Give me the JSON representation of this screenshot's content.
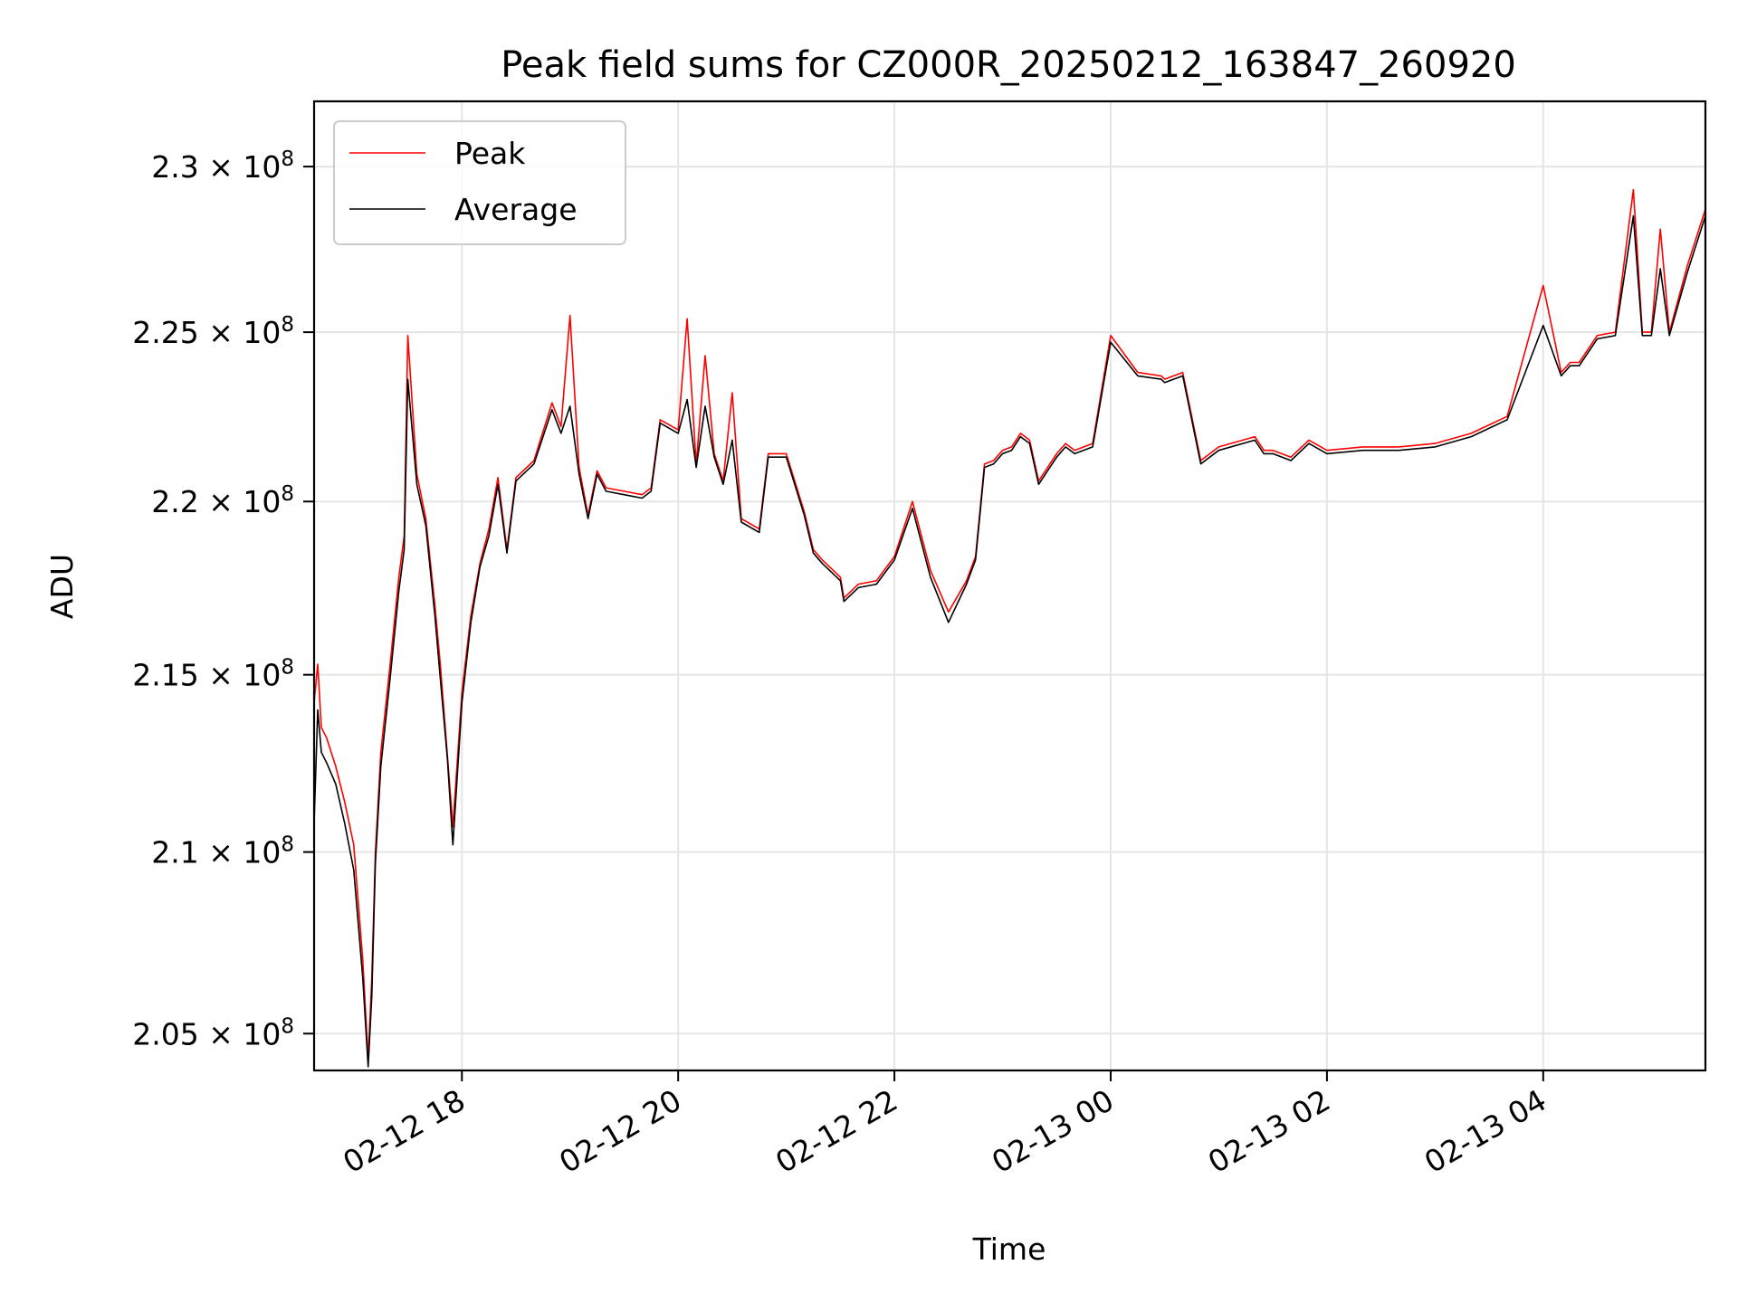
{
  "chart_data": {
    "type": "line",
    "title": "Peak field sums for CZ000R_20250212_163847_260920",
    "xlabel": "Time",
    "ylabel": "ADU",
    "x_axis_type": "datetime",
    "xlim": [
      "2025-02-12 16:38",
      "2025-02-13 05:30"
    ],
    "ylim": [
      204000000,
      232000000
    ],
    "y_scale": "log",
    "grid": true,
    "legend_position": "top-left",
    "x_ticks": [
      "02-12 18",
      "02-12 20",
      "02-12 22",
      "02-13 00",
      "02-13 02",
      "02-13 04"
    ],
    "x_tick_times": [
      "2025-02-12 18:00",
      "2025-02-12 20:00",
      "2025-02-12 22:00",
      "2025-02-13 00:00",
      "2025-02-13 02:00",
      "2025-02-13 04:00"
    ],
    "y_ticks": [
      {
        "value": 205000000,
        "mantissa": "2.05",
        "exp": "8"
      },
      {
        "value": 210000000,
        "mantissa": "2.1",
        "exp": "8"
      },
      {
        "value": 215000000,
        "mantissa": "2.15",
        "exp": "8"
      },
      {
        "value": 220000000,
        "mantissa": "2.2",
        "exp": "8"
      },
      {
        "value": 225000000,
        "mantissa": "2.25",
        "exp": "8"
      },
      {
        "value": 230000000,
        "mantissa": "2.3",
        "exp": "8"
      }
    ],
    "times_symbol": "×",
    "colors": {
      "peak": "#ff0000",
      "average": "#000000",
      "grid": "#e5e5e5"
    },
    "series": [
      {
        "name": "Peak",
        "color": "#ff0000",
        "x": [
          "2025-02-12 16:38",
          "2025-02-12 16:40",
          "2025-02-12 16:42",
          "2025-02-12 16:45",
          "2025-02-12 16:50",
          "2025-02-12 16:55",
          "2025-02-12 17:00",
          "2025-02-12 17:05",
          "2025-02-12 17:08",
          "2025-02-12 17:10",
          "2025-02-12 17:12",
          "2025-02-12 17:15",
          "2025-02-12 17:20",
          "2025-02-12 17:25",
          "2025-02-12 17:28",
          "2025-02-12 17:30",
          "2025-02-12 17:35",
          "2025-02-12 17:40",
          "2025-02-12 17:45",
          "2025-02-12 17:48",
          "2025-02-12 17:52",
          "2025-02-12 17:55",
          "2025-02-12 18:00",
          "2025-02-12 18:05",
          "2025-02-12 18:10",
          "2025-02-12 18:15",
          "2025-02-12 18:20",
          "2025-02-12 18:25",
          "2025-02-12 18:30",
          "2025-02-12 18:40",
          "2025-02-12 18:50",
          "2025-02-12 18:55",
          "2025-02-12 19:00",
          "2025-02-12 19:05",
          "2025-02-12 19:10",
          "2025-02-12 19:15",
          "2025-02-12 19:20",
          "2025-02-12 19:30",
          "2025-02-12 19:40",
          "2025-02-12 19:45",
          "2025-02-12 19:50",
          "2025-02-12 20:00",
          "2025-02-12 20:05",
          "2025-02-12 20:10",
          "2025-02-12 20:15",
          "2025-02-12 20:20",
          "2025-02-12 20:25",
          "2025-02-12 20:30",
          "2025-02-12 20:35",
          "2025-02-12 20:45",
          "2025-02-12 20:50",
          "2025-02-12 21:00",
          "2025-02-12 21:10",
          "2025-02-12 21:15",
          "2025-02-12 21:20",
          "2025-02-12 21:30",
          "2025-02-12 21:32",
          "2025-02-12 21:40",
          "2025-02-12 21:50",
          "2025-02-12 22:00",
          "2025-02-12 22:10",
          "2025-02-12 22:20",
          "2025-02-12 22:30",
          "2025-02-12 22:40",
          "2025-02-12 22:45",
          "2025-02-12 22:50",
          "2025-02-12 22:55",
          "2025-02-12 23:00",
          "2025-02-12 23:05",
          "2025-02-12 23:10",
          "2025-02-12 23:15",
          "2025-02-12 23:20",
          "2025-02-12 23:30",
          "2025-02-12 23:35",
          "2025-02-12 23:40",
          "2025-02-12 23:50",
          "2025-02-13 00:00",
          "2025-02-13 00:15",
          "2025-02-13 00:28",
          "2025-02-13 00:30",
          "2025-02-13 00:40",
          "2025-02-13 00:50",
          "2025-02-13 01:00",
          "2025-02-13 01:20",
          "2025-02-13 01:25",
          "2025-02-13 01:30",
          "2025-02-13 01:40",
          "2025-02-13 01:50",
          "2025-02-13 02:00",
          "2025-02-13 02:20",
          "2025-02-13 02:40",
          "2025-02-13 03:00",
          "2025-02-13 03:20",
          "2025-02-13 03:40",
          "2025-02-13 04:00",
          "2025-02-13 04:10",
          "2025-02-13 04:15",
          "2025-02-13 04:20",
          "2025-02-13 04:25",
          "2025-02-13 04:30",
          "2025-02-13 04:40",
          "2025-02-13 04:50",
          "2025-02-13 04:55",
          "2025-02-13 05:00",
          "2025-02-13 05:05",
          "2025-02-13 05:10",
          "2025-02-13 05:20",
          "2025-02-13 05:30"
        ],
        "y": [
          214200000,
          215300000,
          213500000,
          213200000,
          212400000,
          211400000,
          210200000,
          207000000,
          204300000,
          206500000,
          210000000,
          212800000,
          215200000,
          217800000,
          219000000,
          224900000,
          220800000,
          219500000,
          217000000,
          215300000,
          212700000,
          210700000,
          214500000,
          216700000,
          218200000,
          219200000,
          220700000,
          218600000,
          220700000,
          221200000,
          222900000,
          222200000,
          225500000,
          221000000,
          219600000,
          220900000,
          220400000,
          220300000,
          220200000,
          220400000,
          222400000,
          222100000,
          225400000,
          221100000,
          224300000,
          221400000,
          220600000,
          223200000,
          219500000,
          219200000,
          221400000,
          221400000,
          219700000,
          218600000,
          218300000,
          217800000,
          217200000,
          217600000,
          217700000,
          218400000,
          220000000,
          218000000,
          216800000,
          217700000,
          218400000,
          221100000,
          221200000,
          221500000,
          221600000,
          222000000,
          221800000,
          220600000,
          221400000,
          221700000,
          221500000,
          221700000,
          224900000,
          223800000,
          223700000,
          223600000,
          223800000,
          221200000,
          221600000,
          221900000,
          221500000,
          221500000,
          221300000,
          221800000,
          221500000,
          221600000,
          221600000,
          221700000,
          222000000,
          222500000,
          226400000,
          223800000,
          224100000,
          224100000,
          224500000,
          224900000,
          225000000,
          229300000,
          225000000,
          225000000,
          228100000,
          225000000,
          227000000,
          228700000
        ]
      },
      {
        "name": "Average",
        "color": "#000000",
        "x": [
          "2025-02-12 16:38",
          "2025-02-12 16:40",
          "2025-02-12 16:42",
          "2025-02-12 16:45",
          "2025-02-12 16:50",
          "2025-02-12 16:55",
          "2025-02-12 17:00",
          "2025-02-12 17:05",
          "2025-02-12 17:08",
          "2025-02-12 17:10",
          "2025-02-12 17:12",
          "2025-02-12 17:15",
          "2025-02-12 17:20",
          "2025-02-12 17:25",
          "2025-02-12 17:28",
          "2025-02-12 17:30",
          "2025-02-12 17:35",
          "2025-02-12 17:40",
          "2025-02-12 17:45",
          "2025-02-12 17:48",
          "2025-02-12 17:52",
          "2025-02-12 17:55",
          "2025-02-12 18:00",
          "2025-02-12 18:05",
          "2025-02-12 18:10",
          "2025-02-12 18:15",
          "2025-02-12 18:20",
          "2025-02-12 18:25",
          "2025-02-12 18:30",
          "2025-02-12 18:40",
          "2025-02-12 18:50",
          "2025-02-12 18:55",
          "2025-02-12 19:00",
          "2025-02-12 19:05",
          "2025-02-12 19:10",
          "2025-02-12 19:15",
          "2025-02-12 19:20",
          "2025-02-12 19:30",
          "2025-02-12 19:40",
          "2025-02-12 19:45",
          "2025-02-12 19:50",
          "2025-02-12 20:00",
          "2025-02-12 20:05",
          "2025-02-12 20:10",
          "2025-02-12 20:15",
          "2025-02-12 20:20",
          "2025-02-12 20:25",
          "2025-02-12 20:30",
          "2025-02-12 20:35",
          "2025-02-12 20:45",
          "2025-02-12 20:50",
          "2025-02-12 21:00",
          "2025-02-12 21:10",
          "2025-02-12 21:15",
          "2025-02-12 21:20",
          "2025-02-12 21:30",
          "2025-02-12 21:32",
          "2025-02-12 21:40",
          "2025-02-12 21:50",
          "2025-02-12 22:00",
          "2025-02-12 22:10",
          "2025-02-12 22:20",
          "2025-02-12 22:30",
          "2025-02-12 22:40",
          "2025-02-12 22:45",
          "2025-02-12 22:50",
          "2025-02-12 22:55",
          "2025-02-12 23:00",
          "2025-02-12 23:05",
          "2025-02-12 23:10",
          "2025-02-12 23:15",
          "2025-02-12 23:20",
          "2025-02-12 23:30",
          "2025-02-12 23:35",
          "2025-02-12 23:40",
          "2025-02-12 23:50",
          "2025-02-13 00:00",
          "2025-02-13 00:15",
          "2025-02-13 00:28",
          "2025-02-13 00:30",
          "2025-02-13 00:40",
          "2025-02-13 00:50",
          "2025-02-13 01:00",
          "2025-02-13 01:20",
          "2025-02-13 01:25",
          "2025-02-13 01:30",
          "2025-02-13 01:40",
          "2025-02-13 01:50",
          "2025-02-13 02:00",
          "2025-02-13 02:20",
          "2025-02-13 02:40",
          "2025-02-13 03:00",
          "2025-02-13 03:20",
          "2025-02-13 03:40",
          "2025-02-13 04:00",
          "2025-02-13 04:10",
          "2025-02-13 04:15",
          "2025-02-13 04:20",
          "2025-02-13 04:25",
          "2025-02-13 04:30",
          "2025-02-13 04:40",
          "2025-02-13 04:50",
          "2025-02-13 04:55",
          "2025-02-13 05:00",
          "2025-02-13 05:05",
          "2025-02-13 05:10",
          "2025-02-13 05:20",
          "2025-02-13 05:30"
        ],
        "y": [
          210800000,
          214000000,
          212800000,
          212500000,
          211900000,
          210800000,
          209500000,
          206500000,
          204100000,
          206000000,
          209700000,
          212400000,
          214800000,
          217400000,
          218600000,
          223600000,
          220500000,
          219300000,
          216700000,
          214900000,
          212600000,
          210200000,
          214200000,
          216500000,
          218100000,
          219000000,
          220500000,
          218500000,
          220600000,
          221100000,
          222700000,
          222000000,
          222800000,
          220800000,
          219500000,
          220800000,
          220300000,
          220200000,
          220100000,
          220300000,
          222300000,
          222000000,
          223000000,
          221000000,
          222800000,
          221300000,
          220500000,
          221800000,
          219400000,
          219100000,
          221300000,
          221300000,
          219600000,
          218500000,
          218200000,
          217700000,
          217100000,
          217500000,
          217600000,
          218300000,
          219800000,
          217800000,
          216500000,
          217600000,
          218300000,
          221000000,
          221100000,
          221400000,
          221500000,
          221900000,
          221700000,
          220500000,
          221300000,
          221600000,
          221400000,
          221600000,
          224700000,
          223700000,
          223600000,
          223500000,
          223700000,
          221100000,
          221500000,
          221800000,
          221400000,
          221400000,
          221200000,
          221700000,
          221400000,
          221500000,
          221500000,
          221600000,
          221900000,
          222400000,
          225200000,
          223700000,
          224000000,
          224000000,
          224400000,
          224800000,
          224900000,
          228500000,
          224900000,
          224900000,
          226900000,
          224900000,
          226800000,
          228500000
        ]
      }
    ]
  }
}
